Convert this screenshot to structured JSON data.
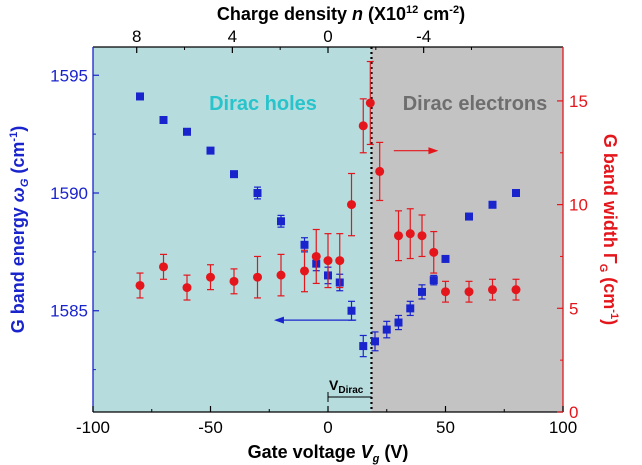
{
  "chart_data": {
    "type": "scatter",
    "title": "",
    "x": {
      "label_prefix": "Gate voltage ",
      "label_var": "V",
      "label_sub": "g",
      "label_suffix": " (V)",
      "lim": [
        -100,
        100
      ],
      "ticks": [
        -100,
        -50,
        0,
        50,
        100
      ],
      "tick_labels": [
        "-100",
        "-50",
        "0",
        "50",
        "100"
      ]
    },
    "x_top": {
      "label_prefix": "Charge density ",
      "label_var": "n",
      "label_mid": " (X10",
      "label_sup1": "12",
      "label_mid2": " cm",
      "label_sup2": "-2",
      "label_suffix": ")",
      "tick_gate": [
        -81.4,
        -40.7,
        0,
        40.7
      ],
      "tick_labels": [
        "8",
        "4",
        "0",
        "-4"
      ]
    },
    "y_left": {
      "label_prefix": "G band energy ",
      "label_var": "ω",
      "label_sub": "G",
      "label_mid": " (cm",
      "label_sup": "-1",
      "label_suffix": ")",
      "lim": [
        1580.7,
        1596.2
      ],
      "ticks": [
        1585,
        1590,
        1595
      ],
      "color": "#1a24cc"
    },
    "y_right": {
      "label_prefix": "G band width Γ",
      "label_sub": "G",
      "label_mid": " (cm",
      "label_sup": "-1",
      "label_suffix": ")",
      "lim": [
        0,
        17.6
      ],
      "ticks": [
        0,
        5,
        10,
        15
      ],
      "color": "#e4161c"
    },
    "dirac_voltage": 18.5,
    "regions": [
      {
        "name": "Dirac holes",
        "from": -100,
        "to": 18.5,
        "color": "#b6dcde",
        "text_color": "#27c4cb"
      },
      {
        "name": "Dirac electrons",
        "from": 18.5,
        "to": 100,
        "color": "#c3c3c3",
        "text_color": "#6e6e6e"
      }
    ],
    "vdirac_label": "V",
    "vdirac_sub": "Dirac",
    "series": [
      {
        "axis": "left",
        "marker": "square",
        "color": "#1a24cc",
        "x": [
          -80,
          -70,
          -60,
          -50,
          -40,
          -30,
          -20,
          -10,
          -5,
          0,
          5,
          10,
          15,
          20,
          25,
          30,
          35,
          40,
          45,
          50,
          60,
          70,
          80
        ],
        "y": [
          1594.1,
          1593.1,
          1592.6,
          1591.8,
          1590.8,
          1590.0,
          1588.8,
          1587.8,
          1587.0,
          1586.5,
          1586.2,
          1585.0,
          1583.5,
          1583.7,
          1584.2,
          1584.5,
          1585.1,
          1585.8,
          1586.3,
          1587.2,
          1589.0,
          1589.5,
          1590.0
        ],
        "err": [
          0,
          0,
          0,
          0,
          0,
          0.25,
          0.25,
          0.3,
          0.3,
          0.35,
          0.35,
          0.4,
          0.45,
          0.4,
          0.35,
          0.3,
          0.3,
          0.3,
          0.2,
          0,
          0,
          0,
          0
        ]
      },
      {
        "axis": "right",
        "marker": "circle",
        "color": "#e4161c",
        "x": [
          -80,
          -70,
          -60,
          -50,
          -40,
          -30,
          -20,
          -10,
          -5,
          0,
          5,
          10,
          15,
          18,
          22,
          30,
          35,
          40,
          45,
          50,
          60,
          70,
          80
        ],
        "y": [
          6.1,
          7.0,
          6.0,
          6.5,
          6.3,
          6.5,
          6.6,
          6.8,
          7.5,
          7.3,
          7.3,
          10.0,
          13.8,
          14.9,
          11.6,
          8.5,
          8.6,
          8.5,
          7.7,
          5.8,
          5.8,
          5.9,
          5.9
        ],
        "err": [
          0.6,
          0.6,
          0.6,
          0.6,
          0.6,
          1.0,
          1.0,
          1.0,
          1.3,
          1.3,
          1.3,
          1.5,
          1.3,
          2.0,
          1.4,
          1.2,
          1.2,
          1.0,
          1.0,
          0.5,
          0.5,
          0.5,
          0.5
        ]
      }
    ],
    "arrows": [
      {
        "axis": "left",
        "x_from": 12,
        "x_to": -23,
        "y": 1584.6,
        "color": "#1a24cc"
      },
      {
        "axis": "right",
        "x_from": 28,
        "x_to": 47,
        "y": 12.6,
        "color": "#e4161c"
      }
    ]
  }
}
